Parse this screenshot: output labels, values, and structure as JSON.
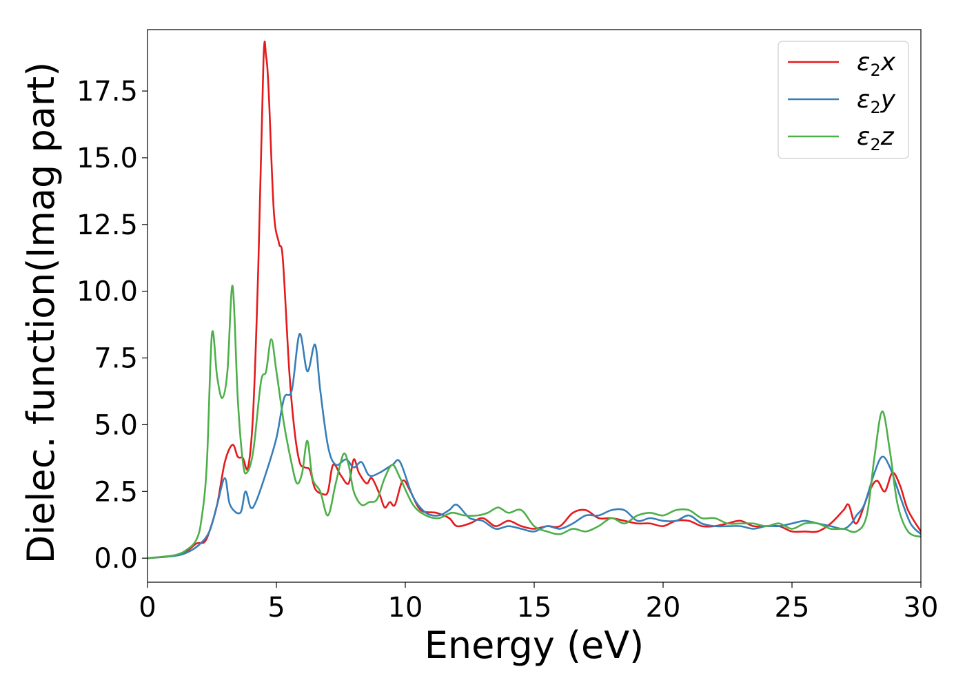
{
  "chart_data": {
    "type": "line",
    "title": "",
    "xlabel": "Energy (eV)",
    "ylabel": "Dielec. function(Imag part)",
    "xlim": [
      0,
      30
    ],
    "ylim": [
      -0.9,
      19.8
    ],
    "xticks": [
      0,
      5,
      10,
      15,
      20,
      25,
      30
    ],
    "yticks": [
      0.0,
      2.5,
      5.0,
      7.5,
      10.0,
      12.5,
      15.0,
      17.5
    ],
    "xtick_labels": [
      "0",
      "5",
      "10",
      "15",
      "20",
      "25",
      "30"
    ],
    "ytick_labels": [
      "0.0",
      "2.5",
      "5.0",
      "7.5",
      "10.0",
      "12.5",
      "15.0",
      "17.5"
    ],
    "grid": false,
    "legend_position": "top-right",
    "series": [
      {
        "name": "ε₂x",
        "legend_parts": [
          "ε",
          "2",
          "x"
        ],
        "color": "#e41a1c",
        "points": [
          [
            0,
            0
          ],
          [
            1,
            0.1
          ],
          [
            1.5,
            0.25
          ],
          [
            1.9,
            0.55
          ],
          [
            2.2,
            0.6
          ],
          [
            2.4,
            1.0
          ],
          [
            2.7,
            2.0
          ],
          [
            3.0,
            3.6
          ],
          [
            3.3,
            4.25
          ],
          [
            3.5,
            3.8
          ],
          [
            3.7,
            3.75
          ],
          [
            3.9,
            3.4
          ],
          [
            4.1,
            5.5
          ],
          [
            4.3,
            11.0
          ],
          [
            4.5,
            18.7
          ],
          [
            4.6,
            18.8
          ],
          [
            4.7,
            17.5
          ],
          [
            4.9,
            13.0
          ],
          [
            5.1,
            11.8
          ],
          [
            5.25,
            11.2
          ],
          [
            5.5,
            7.0
          ],
          [
            5.7,
            4.8
          ],
          [
            5.9,
            3.6
          ],
          [
            6.1,
            3.4
          ],
          [
            6.3,
            3.3
          ],
          [
            6.5,
            2.6
          ],
          [
            6.8,
            2.4
          ],
          [
            7.0,
            2.5
          ],
          [
            7.2,
            3.5
          ],
          [
            7.5,
            3.1
          ],
          [
            7.8,
            2.8
          ],
          [
            8.0,
            3.7
          ],
          [
            8.2,
            3.2
          ],
          [
            8.5,
            2.8
          ],
          [
            8.7,
            3.0
          ],
          [
            9.0,
            2.4
          ],
          [
            9.2,
            1.9
          ],
          [
            9.4,
            2.1
          ],
          [
            9.6,
            2.0
          ],
          [
            9.9,
            2.9
          ],
          [
            10.2,
            2.5
          ],
          [
            10.6,
            1.8
          ],
          [
            11.2,
            1.7
          ],
          [
            11.7,
            1.5
          ],
          [
            12.0,
            1.2
          ],
          [
            12.5,
            1.3
          ],
          [
            13.0,
            1.5
          ],
          [
            13.5,
            1.2
          ],
          [
            14.0,
            1.4
          ],
          [
            14.5,
            1.2
          ],
          [
            15.0,
            1.1
          ],
          [
            15.5,
            1.2
          ],
          [
            16.0,
            1.2
          ],
          [
            16.5,
            1.7
          ],
          [
            17.0,
            1.8
          ],
          [
            17.5,
            1.5
          ],
          [
            18.0,
            1.5
          ],
          [
            18.5,
            1.4
          ],
          [
            19.0,
            1.3
          ],
          [
            19.5,
            1.3
          ],
          [
            20.0,
            1.2
          ],
          [
            20.5,
            1.4
          ],
          [
            21.0,
            1.4
          ],
          [
            21.5,
            1.2
          ],
          [
            22.0,
            1.2
          ],
          [
            22.5,
            1.3
          ],
          [
            23.0,
            1.4
          ],
          [
            23.5,
            1.2
          ],
          [
            24.0,
            1.2
          ],
          [
            24.5,
            1.2
          ],
          [
            25.0,
            1.0
          ],
          [
            25.5,
            1.0
          ],
          [
            26.0,
            1.0
          ],
          [
            26.5,
            1.3
          ],
          [
            27.0,
            1.8
          ],
          [
            27.2,
            2.0
          ],
          [
            27.5,
            1.3
          ],
          [
            28.0,
            2.5
          ],
          [
            28.3,
            2.9
          ],
          [
            28.6,
            2.5
          ],
          [
            28.9,
            3.2
          ],
          [
            29.2,
            2.7
          ],
          [
            29.5,
            1.8
          ],
          [
            30,
            1.0
          ]
        ]
      },
      {
        "name": "ε₂y",
        "legend_parts": [
          "ε",
          "2",
          "y"
        ],
        "color": "#377eb8",
        "points": [
          [
            0,
            0
          ],
          [
            1,
            0.08
          ],
          [
            1.5,
            0.2
          ],
          [
            2.0,
            0.5
          ],
          [
            2.4,
            1.0
          ],
          [
            2.7,
            2.0
          ],
          [
            3.0,
            3.0
          ],
          [
            3.2,
            2.0
          ],
          [
            3.6,
            1.7
          ],
          [
            3.8,
            2.5
          ],
          [
            4.0,
            1.9
          ],
          [
            4.2,
            2.1
          ],
          [
            4.6,
            3.2
          ],
          [
            5.0,
            4.5
          ],
          [
            5.3,
            6.0
          ],
          [
            5.6,
            6.3
          ],
          [
            5.9,
            8.4
          ],
          [
            6.2,
            7.0
          ],
          [
            6.5,
            8.0
          ],
          [
            6.7,
            6.3
          ],
          [
            7.0,
            4.2
          ],
          [
            7.3,
            3.5
          ],
          [
            7.7,
            3.7
          ],
          [
            8.0,
            3.4
          ],
          [
            8.3,
            3.6
          ],
          [
            8.6,
            3.1
          ],
          [
            9.0,
            3.2
          ],
          [
            9.5,
            3.5
          ],
          [
            9.8,
            3.6
          ],
          [
            10.3,
            2.3
          ],
          [
            10.8,
            1.7
          ],
          [
            11.3,
            1.6
          ],
          [
            11.7,
            1.8
          ],
          [
            12.0,
            2.0
          ],
          [
            12.5,
            1.5
          ],
          [
            13.0,
            1.4
          ],
          [
            13.5,
            1.1
          ],
          [
            14.0,
            1.2
          ],
          [
            14.5,
            1.1
          ],
          [
            15.0,
            1.0
          ],
          [
            15.5,
            1.2
          ],
          [
            16.0,
            1.1
          ],
          [
            16.5,
            1.3
          ],
          [
            17.0,
            1.6
          ],
          [
            17.5,
            1.6
          ],
          [
            18.0,
            1.8
          ],
          [
            18.5,
            1.8
          ],
          [
            19.0,
            1.4
          ],
          [
            19.5,
            1.5
          ],
          [
            20.0,
            1.4
          ],
          [
            20.5,
            1.4
          ],
          [
            21.0,
            1.6
          ],
          [
            21.5,
            1.3
          ],
          [
            22.0,
            1.2
          ],
          [
            22.5,
            1.2
          ],
          [
            23.0,
            1.2
          ],
          [
            23.5,
            1.1
          ],
          [
            24.0,
            1.2
          ],
          [
            24.5,
            1.2
          ],
          [
            25.0,
            1.3
          ],
          [
            25.5,
            1.4
          ],
          [
            26.0,
            1.3
          ],
          [
            26.5,
            1.2
          ],
          [
            27.0,
            1.1
          ],
          [
            27.3,
            1.3
          ],
          [
            27.5,
            1.6
          ],
          [
            27.8,
            2.0
          ],
          [
            28.2,
            3.2
          ],
          [
            28.5,
            3.8
          ],
          [
            28.8,
            3.4
          ],
          [
            29.2,
            2.3
          ],
          [
            29.6,
            1.3
          ],
          [
            30,
            0.9
          ]
        ]
      },
      {
        "name": "ε₂z",
        "legend_parts": [
          "ε",
          "2",
          "z"
        ],
        "color": "#4daf4a",
        "points": [
          [
            0,
            0
          ],
          [
            1,
            0.1
          ],
          [
            1.5,
            0.3
          ],
          [
            1.9,
            0.7
          ],
          [
            2.1,
            1.5
          ],
          [
            2.3,
            3.5
          ],
          [
            2.5,
            8.4
          ],
          [
            2.7,
            6.8
          ],
          [
            2.9,
            6.0
          ],
          [
            3.1,
            7.0
          ],
          [
            3.3,
            10.2
          ],
          [
            3.5,
            6.0
          ],
          [
            3.7,
            3.6
          ],
          [
            3.85,
            3.2
          ],
          [
            4.1,
            4.0
          ],
          [
            4.4,
            6.6
          ],
          [
            4.6,
            7.0
          ],
          [
            4.8,
            8.2
          ],
          [
            5.0,
            7.0
          ],
          [
            5.3,
            5.0
          ],
          [
            5.6,
            3.5
          ],
          [
            5.8,
            2.8
          ],
          [
            6.0,
            3.2
          ],
          [
            6.2,
            4.4
          ],
          [
            6.4,
            3.0
          ],
          [
            6.7,
            2.5
          ],
          [
            7.0,
            1.6
          ],
          [
            7.3,
            2.8
          ],
          [
            7.6,
            3.9
          ],
          [
            7.8,
            3.5
          ],
          [
            8.0,
            2.5
          ],
          [
            8.3,
            2.0
          ],
          [
            8.6,
            2.1
          ],
          [
            8.9,
            2.2
          ],
          [
            9.2,
            3.0
          ],
          [
            9.5,
            3.5
          ],
          [
            9.8,
            3.0
          ],
          [
            10.3,
            2.0
          ],
          [
            10.8,
            1.6
          ],
          [
            11.3,
            1.5
          ],
          [
            11.8,
            1.7
          ],
          [
            12.3,
            1.6
          ],
          [
            12.8,
            1.6
          ],
          [
            13.2,
            1.7
          ],
          [
            13.6,
            1.9
          ],
          [
            14.0,
            1.7
          ],
          [
            14.5,
            1.8
          ],
          [
            15.0,
            1.2
          ],
          [
            15.5,
            1.0
          ],
          [
            16.0,
            0.9
          ],
          [
            16.5,
            1.1
          ],
          [
            17.0,
            1.0
          ],
          [
            17.5,
            1.2
          ],
          [
            18.0,
            1.5
          ],
          [
            18.5,
            1.3
          ],
          [
            19.0,
            1.6
          ],
          [
            19.5,
            1.7
          ],
          [
            20.0,
            1.6
          ],
          [
            20.5,
            1.8
          ],
          [
            21.0,
            1.8
          ],
          [
            21.5,
            1.5
          ],
          [
            22.0,
            1.5
          ],
          [
            22.5,
            1.3
          ],
          [
            23.0,
            1.3
          ],
          [
            23.5,
            1.3
          ],
          [
            24.0,
            1.2
          ],
          [
            24.5,
            1.3
          ],
          [
            25.0,
            1.1
          ],
          [
            25.5,
            1.3
          ],
          [
            26.0,
            1.3
          ],
          [
            26.5,
            1.1
          ],
          [
            27.0,
            1.1
          ],
          [
            27.5,
            1.0
          ],
          [
            27.9,
            1.6
          ],
          [
            28.2,
            3.8
          ],
          [
            28.5,
            5.5
          ],
          [
            28.8,
            4.0
          ],
          [
            29.1,
            2.0
          ],
          [
            29.5,
            1.0
          ],
          [
            30,
            0.8
          ]
        ]
      }
    ]
  }
}
